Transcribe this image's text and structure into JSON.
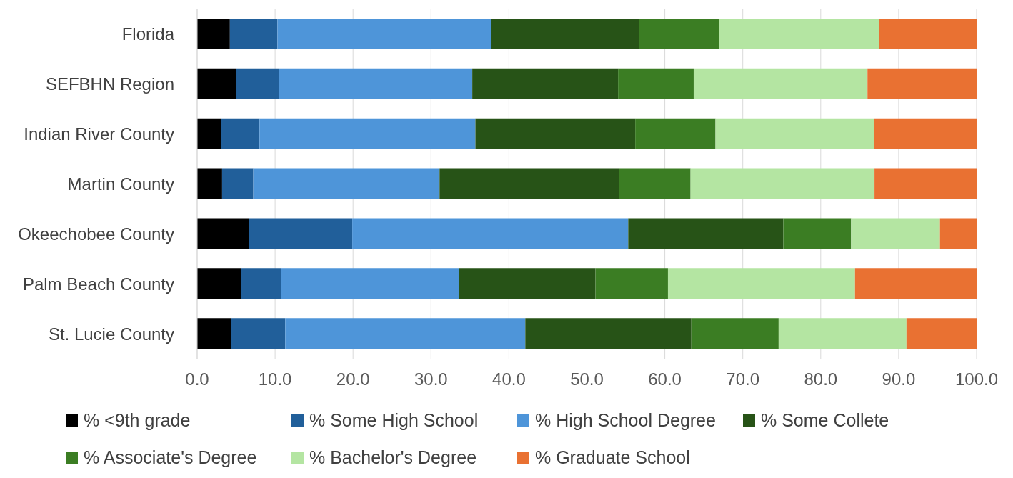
{
  "chart_data": {
    "type": "bar",
    "orientation": "horizontal",
    "stacked": true,
    "categories": [
      "Florida",
      "SEFBHN Region",
      "Indian River County",
      "Martin County",
      "Okeechobee County",
      "Palm Beach County",
      "St. Lucie County"
    ],
    "series": [
      {
        "name": "% <9th grade",
        "color": "#000000",
        "values": [
          4.2,
          5.0,
          3.1,
          3.2,
          6.6,
          5.6,
          4.4
        ]
      },
      {
        "name": "% Some High School",
        "color": "#215f9a",
        "values": [
          6.1,
          5.5,
          4.9,
          4.0,
          13.3,
          5.2,
          6.9
        ]
      },
      {
        "name": "% High School Degree",
        "color": "#4e95d9",
        "values": [
          27.4,
          24.8,
          27.7,
          23.9,
          35.4,
          22.8,
          30.8
        ]
      },
      {
        "name": "% Some Collete",
        "color": "#275317",
        "values": [
          19.0,
          18.7,
          20.5,
          23.0,
          19.9,
          17.5,
          21.3
        ]
      },
      {
        "name": "% Associate's Degree",
        "color": "#3b7d23",
        "values": [
          10.3,
          9.7,
          10.3,
          9.2,
          8.7,
          9.3,
          11.2
        ]
      },
      {
        "name": "% Bachelor's Degree",
        "color": "#b4e5a2",
        "values": [
          20.5,
          22.3,
          20.3,
          23.6,
          11.4,
          24.0,
          16.4
        ]
      },
      {
        "name": "% Graduate School",
        "color": "#e97132",
        "values": [
          12.5,
          14.0,
          13.2,
          13.1,
          4.7,
          15.6,
          9.0
        ]
      }
    ],
    "xlim": [
      0,
      100
    ],
    "xticks": [
      {
        "value": 0,
        "label": "0.0"
      },
      {
        "value": 10,
        "label": "10.0"
      },
      {
        "value": 20,
        "label": "20.0"
      },
      {
        "value": 30,
        "label": "30.0"
      },
      {
        "value": 40,
        "label": "40.0"
      },
      {
        "value": 50,
        "label": "50.0"
      },
      {
        "value": 60,
        "label": "60.0"
      },
      {
        "value": 70,
        "label": "70.0"
      },
      {
        "value": 80,
        "label": "80.0"
      },
      {
        "value": 90,
        "label": "90.0"
      },
      {
        "value": 100,
        "label": "100.0"
      }
    ],
    "grid": "x",
    "legend": "bottom"
  }
}
